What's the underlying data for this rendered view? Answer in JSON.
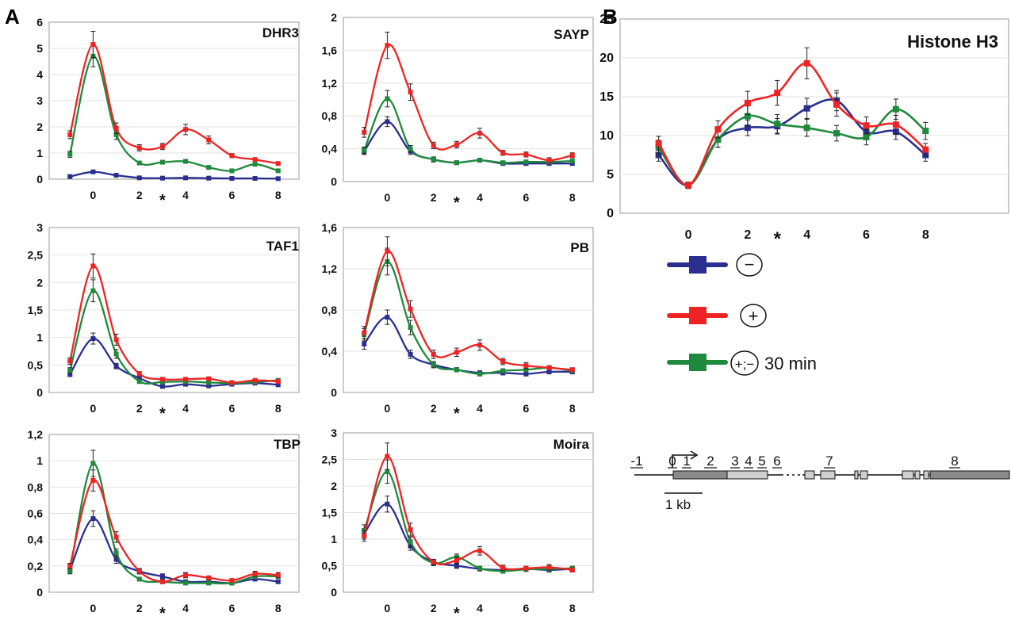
{
  "panel_labels": [
    "A",
    "B"
  ],
  "colors": {
    "minus": "#2a2f8f",
    "plus": "#ee2424",
    "plus_minus_30": "#1f8a3c"
  },
  "legend": {
    "items": [
      {
        "key": "minus",
        "symbol": "−",
        "label": ""
      },
      {
        "key": "plus",
        "symbol": "+",
        "label": ""
      },
      {
        "key": "plus_minus_30",
        "symbol": "+;−",
        "label": "30 min"
      }
    ]
  },
  "gene_map": {
    "amplicon_labels": [
      "-1",
      "0",
      "1",
      "2",
      "3",
      "4",
      "5",
      "6",
      "7",
      "8"
    ],
    "scale_label": "1 kb"
  },
  "chart_data": [
    {
      "type": "line",
      "title": "DHR3",
      "ylim": [
        0,
        6
      ],
      "yticks": [
        "0",
        "1",
        "2",
        "3",
        "4",
        "5",
        "6"
      ],
      "x": [
        -1,
        0,
        1,
        2,
        3,
        4,
        5,
        6,
        7,
        8
      ],
      "xticks": [
        "0",
        "2",
        "4",
        "6",
        "8"
      ],
      "star_x": 3,
      "series": [
        {
          "key": "minus",
          "values": [
            0.1,
            0.28,
            0.15,
            0.05,
            0.04,
            0.05,
            0.04,
            0.03,
            0.03,
            0.02
          ],
          "err": [
            0.03,
            0.04,
            0.03,
            0.02,
            0.02,
            0.02,
            0.02,
            0.02,
            0.02,
            0.02
          ]
        },
        {
          "key": "plus",
          "values": [
            1.7,
            5.15,
            1.95,
            1.2,
            1.25,
            1.9,
            1.5,
            0.9,
            0.75,
            0.6
          ],
          "err": [
            0.15,
            0.5,
            0.2,
            0.12,
            0.12,
            0.2,
            0.15,
            0.08,
            0.07,
            0.06
          ]
        },
        {
          "key": "plus_minus_30",
          "values": [
            0.95,
            4.7,
            1.7,
            0.62,
            0.65,
            0.68,
            0.45,
            0.32,
            0.57,
            0.32
          ],
          "err": [
            0.12,
            0.4,
            0.18,
            0.06,
            0.06,
            0.06,
            0.05,
            0.04,
            0.05,
            0.04
          ]
        }
      ]
    },
    {
      "type": "line",
      "title": "SAYP",
      "ylim": [
        0,
        2
      ],
      "yticks": [
        "0",
        "0,4",
        "0,8",
        "1,2",
        "1,6",
        "2"
      ],
      "x": [
        -1,
        0,
        1,
        2,
        3,
        4,
        5,
        6,
        7,
        8
      ],
      "xticks": [
        "0",
        "2",
        "4",
        "6",
        "8"
      ],
      "star_x": 3,
      "series": [
        {
          "key": "minus",
          "values": [
            0.37,
            0.73,
            0.37,
            0.27,
            0.23,
            0.26,
            0.22,
            0.22,
            0.22,
            0.22
          ],
          "err": [
            0.04,
            0.06,
            0.04,
            0.03,
            0.02,
            0.02,
            0.02,
            0.02,
            0.02,
            0.02
          ]
        },
        {
          "key": "plus",
          "values": [
            0.6,
            1.66,
            1.09,
            0.44,
            0.45,
            0.59,
            0.35,
            0.33,
            0.26,
            0.32
          ],
          "err": [
            0.06,
            0.16,
            0.1,
            0.04,
            0.04,
            0.06,
            0.03,
            0.03,
            0.03,
            0.03
          ]
        },
        {
          "key": "plus_minus_30",
          "values": [
            0.38,
            1.01,
            0.4,
            0.27,
            0.23,
            0.26,
            0.23,
            0.24,
            0.24,
            0.25
          ],
          "err": [
            0.04,
            0.1,
            0.04,
            0.03,
            0.02,
            0.02,
            0.02,
            0.02,
            0.02,
            0.02
          ]
        }
      ]
    },
    {
      "type": "line",
      "title": "TAF1",
      "ylim": [
        0,
        3
      ],
      "yticks": [
        "0",
        "0,5",
        "1",
        "1,5",
        "2",
        "2,5",
        "3"
      ],
      "x": [
        -1,
        0,
        1,
        2,
        3,
        4,
        5,
        6,
        7,
        8
      ],
      "xticks": [
        "0",
        "2",
        "4",
        "6",
        "8"
      ],
      "star_x": 3,
      "series": [
        {
          "key": "minus",
          "values": [
            0.33,
            0.98,
            0.48,
            0.26,
            0.11,
            0.15,
            0.12,
            0.15,
            0.17,
            0.14
          ],
          "err": [
            0.04,
            0.1,
            0.05,
            0.03,
            0.02,
            0.02,
            0.02,
            0.02,
            0.02,
            0.02
          ]
        },
        {
          "key": "plus",
          "values": [
            0.57,
            2.3,
            0.96,
            0.34,
            0.24,
            0.24,
            0.25,
            0.18,
            0.22,
            0.2
          ],
          "err": [
            0.06,
            0.22,
            0.1,
            0.04,
            0.03,
            0.03,
            0.03,
            0.02,
            0.02,
            0.02
          ]
        },
        {
          "key": "plus_minus_30",
          "values": [
            0.4,
            1.85,
            0.7,
            0.2,
            0.19,
            0.2,
            0.18,
            0.17,
            0.19,
            0.22
          ],
          "err": [
            0.05,
            0.2,
            0.08,
            0.03,
            0.02,
            0.02,
            0.02,
            0.02,
            0.02,
            0.02
          ]
        }
      ]
    },
    {
      "type": "line",
      "title": "PB",
      "ylim": [
        0,
        1.6
      ],
      "yticks": [
        "0",
        "0,4",
        "0,8",
        "1,2",
        "1,6"
      ],
      "x": [
        -1,
        0,
        1,
        2,
        3,
        4,
        5,
        6,
        7,
        8
      ],
      "xticks": [
        "0",
        "2",
        "4",
        "6",
        "8"
      ],
      "star_x": 3,
      "series": [
        {
          "key": "minus",
          "values": [
            0.47,
            0.73,
            0.37,
            0.27,
            0.22,
            0.19,
            0.19,
            0.18,
            0.2,
            0.2
          ],
          "err": [
            0.05,
            0.07,
            0.04,
            0.03,
            0.02,
            0.02,
            0.02,
            0.02,
            0.02,
            0.02
          ]
        },
        {
          "key": "plus",
          "values": [
            0.58,
            1.37,
            0.81,
            0.37,
            0.39,
            0.46,
            0.3,
            0.26,
            0.24,
            0.22
          ],
          "err": [
            0.06,
            0.14,
            0.08,
            0.04,
            0.04,
            0.05,
            0.03,
            0.03,
            0.02,
            0.02
          ]
        },
        {
          "key": "plus_minus_30",
          "values": [
            0.56,
            1.27,
            0.63,
            0.27,
            0.22,
            0.18,
            0.21,
            0.22,
            0.24,
            0.21
          ],
          "err": [
            0.06,
            0.13,
            0.07,
            0.03,
            0.02,
            0.02,
            0.02,
            0.02,
            0.02,
            0.02
          ]
        }
      ]
    },
    {
      "type": "line",
      "title": "TBP",
      "ylim": [
        0,
        1.2
      ],
      "yticks": [
        "0",
        "0,2",
        "0,4",
        "0,6",
        "0,8",
        "1",
        "1,2"
      ],
      "x": [
        -1,
        0,
        1,
        2,
        3,
        4,
        5,
        6,
        7,
        8
      ],
      "xticks": [
        "0",
        "2",
        "4",
        "6",
        "8"
      ],
      "star_x": 3,
      "series": [
        {
          "key": "minus",
          "values": [
            0.17,
            0.56,
            0.25,
            0.16,
            0.12,
            0.08,
            0.08,
            0.07,
            0.1,
            0.08
          ],
          "err": [
            0.02,
            0.06,
            0.03,
            0.02,
            0.02,
            0.01,
            0.01,
            0.01,
            0.01,
            0.01
          ]
        },
        {
          "key": "plus",
          "values": [
            0.2,
            0.85,
            0.42,
            0.16,
            0.08,
            0.13,
            0.11,
            0.09,
            0.14,
            0.13
          ],
          "err": [
            0.02,
            0.08,
            0.04,
            0.02,
            0.01,
            0.02,
            0.01,
            0.01,
            0.02,
            0.02
          ]
        },
        {
          "key": "plus_minus_30",
          "values": [
            0.16,
            0.98,
            0.3,
            0.1,
            0.08,
            0.07,
            0.07,
            0.07,
            0.12,
            0.12
          ],
          "err": [
            0.02,
            0.1,
            0.03,
            0.01,
            0.01,
            0.01,
            0.01,
            0.01,
            0.01,
            0.01
          ]
        }
      ]
    },
    {
      "type": "line",
      "title": "Moira",
      "ylim": [
        0,
        3
      ],
      "yticks": [
        "0",
        "0,5",
        "1",
        "1,5",
        "2",
        "2,5",
        "3"
      ],
      "x": [
        -1,
        0,
        1,
        2,
        3,
        4,
        5,
        6,
        7,
        8
      ],
      "xticks": [
        "0",
        "2",
        "4",
        "6",
        "8"
      ],
      "star_x": 3,
      "series": [
        {
          "key": "minus",
          "values": [
            1.1,
            1.66,
            0.87,
            0.57,
            0.5,
            0.44,
            0.42,
            0.44,
            0.42,
            0.44
          ],
          "err": [
            0.1,
            0.15,
            0.08,
            0.05,
            0.05,
            0.04,
            0.04,
            0.04,
            0.04,
            0.04
          ]
        },
        {
          "key": "plus",
          "values": [
            1.06,
            2.56,
            1.18,
            0.57,
            0.6,
            0.78,
            0.46,
            0.45,
            0.47,
            0.42
          ],
          "err": [
            0.1,
            0.25,
            0.12,
            0.05,
            0.06,
            0.08,
            0.05,
            0.04,
            0.05,
            0.04
          ]
        },
        {
          "key": "plus_minus_30",
          "values": [
            1.16,
            2.27,
            0.95,
            0.55,
            0.66,
            0.45,
            0.4,
            0.43,
            0.44,
            0.45
          ],
          "err": [
            0.11,
            0.22,
            0.09,
            0.05,
            0.06,
            0.04,
            0.04,
            0.04,
            0.04,
            0.04
          ]
        }
      ]
    },
    {
      "type": "line",
      "title": "Histone H3",
      "ylim": [
        0,
        25
      ],
      "yticks": [
        "0",
        "5",
        "10",
        "15",
        "20",
        "25"
      ],
      "x": [
        -1,
        0,
        1,
        2,
        3,
        4,
        5,
        6,
        7,
        8
      ],
      "xticks": [
        "0",
        "2",
        "4",
        "6",
        "8"
      ],
      "star_x": 3,
      "series": [
        {
          "key": "minus",
          "values": [
            7.5,
            3.6,
            9.5,
            11.0,
            11.2,
            13.5,
            14.5,
            10.5,
            10.5,
            7.5
          ],
          "err": [
            0.8,
            0.4,
            1.0,
            1.0,
            1.0,
            1.3,
            1.3,
            1.0,
            1.0,
            0.8
          ]
        },
        {
          "key": "plus",
          "values": [
            9.0,
            3.6,
            10.8,
            14.2,
            15.5,
            19.3,
            14.0,
            11.3,
            11.4,
            8.2
          ],
          "err": [
            0.9,
            0.4,
            1.1,
            1.5,
            1.6,
            2.0,
            1.5,
            1.1,
            1.2,
            0.8
          ]
        },
        {
          "key": "plus_minus_30",
          "values": [
            8.5,
            3.6,
            9.5,
            12.5,
            11.5,
            11.0,
            10.3,
            9.8,
            13.4,
            10.6
          ],
          "err": [
            0.9,
            0.4,
            1.0,
            1.3,
            1.2,
            1.1,
            1.0,
            1.0,
            1.3,
            1.1
          ]
        }
      ]
    }
  ]
}
